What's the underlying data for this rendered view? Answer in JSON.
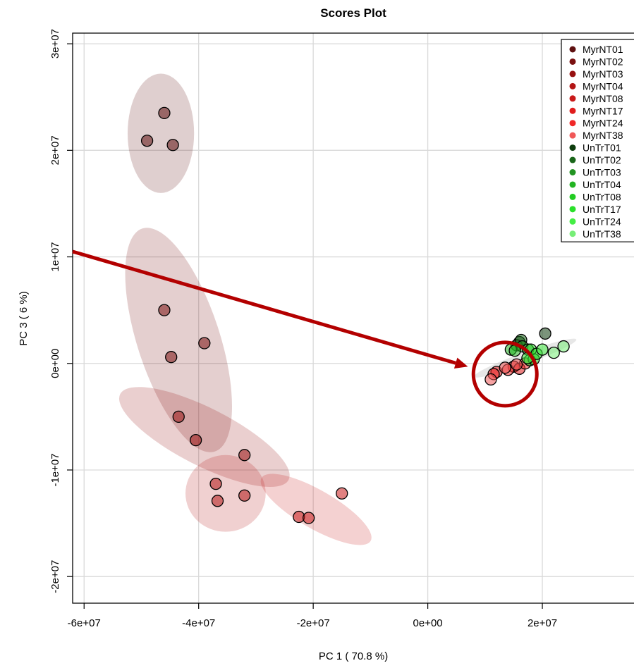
{
  "chart_data": {
    "type": "scatter",
    "title": "Scores Plot",
    "xlabel": "PC 1 ( 70.8 %)",
    "ylabel": "PC 3 ( 6 %)",
    "xlim": [
      -62000000,
      36000000
    ],
    "ylim": [
      -22500000,
      31000000
    ],
    "x_ticks": [
      {
        "value": -60000000,
        "label": "-6e+07"
      },
      {
        "value": -40000000,
        "label": "-4e+07"
      },
      {
        "value": -20000000,
        "label": "-2e+07"
      },
      {
        "value": 0,
        "label": "0e+00"
      },
      {
        "value": 20000000,
        "label": "2e+07"
      }
    ],
    "y_ticks": [
      {
        "value": -20000000,
        "label": "-2e+07"
      },
      {
        "value": -10000000,
        "label": "-1e+07"
      },
      {
        "value": 0,
        "label": "0e+00"
      },
      {
        "value": 10000000,
        "label": "1e+07"
      },
      {
        "value": 20000000,
        "label": "2e+07"
      },
      {
        "value": 30000000,
        "label": "3e+07"
      }
    ],
    "grid": true,
    "legend_position": "top-right",
    "series": [
      {
        "name": "MyrNT01",
        "color": "#5e1010",
        "points": [
          [
            -46000000,
            23500000
          ],
          [
            -49000000,
            20900000
          ],
          [
            -44500000,
            20500000
          ]
        ],
        "ellipse": {
          "cx": -46600000,
          "cy": 21600000,
          "rx": 5800000,
          "ry": 5600000,
          "angle": 0
        }
      },
      {
        "name": "MyrNT02",
        "color": "#7a1010",
        "points": [
          [
            -46000000,
            5000000
          ],
          [
            -39000000,
            1900000
          ],
          [
            -44800000,
            600000
          ]
        ],
        "ellipse": {
          "cx": -43500000,
          "cy": 2200000,
          "rx": 7200000,
          "ry": 11000000,
          "angle": 18
        }
      },
      {
        "name": "MyrNT03",
        "color": "#971010",
        "points": [
          [
            -43500000,
            -5000000
          ],
          [
            -40500000,
            -7200000
          ],
          [
            -32000000,
            -8600000
          ]
        ],
        "ellipse": {
          "cx": -39000000,
          "cy": -6900000,
          "rx": 16500000,
          "ry": 2700000,
          "angle": -27
        }
      },
      {
        "name": "MyrNT04",
        "color": "#b31515",
        "points": [
          [
            -37000000,
            -11300000
          ],
          [
            -36700000,
            -12900000
          ],
          [
            -32000000,
            -12400000
          ]
        ],
        "ellipse": {
          "cx": -35300000,
          "cy": -12200000,
          "rx": 7000000,
          "ry": 3600000,
          "angle": 0
        }
      },
      {
        "name": "MyrNT08",
        "color": "#c91a1a",
        "points": [
          [
            -22500000,
            -14400000
          ],
          [
            -20800000,
            -14500000
          ],
          [
            -15000000,
            -12200000
          ]
        ],
        "ellipse": {
          "cx": -19500000,
          "cy": -13700000,
          "rx": 11000000,
          "ry": 1800000,
          "angle": -30
        }
      },
      {
        "name": "MyrNT17",
        "color": "#e01c1c",
        "points": [
          [
            12000000,
            -800000
          ],
          [
            15000000,
            -300000
          ],
          [
            16000000,
            -500000
          ]
        ]
      },
      {
        "name": "MyrNT24",
        "color": "#f02828",
        "points": [
          [
            11500000,
            -1000000
          ],
          [
            14000000,
            -600000
          ],
          [
            17000000,
            0
          ]
        ]
      },
      {
        "name": "MyrNT38",
        "color": "#f05858",
        "points": [
          [
            11000000,
            -1500000
          ],
          [
            13500000,
            -400000
          ],
          [
            15500000,
            -100000
          ]
        ]
      },
      {
        "name": "UnTrT01",
        "color": "#0e3d0e",
        "points": [
          [
            16000000,
            2000000
          ],
          [
            20500000,
            2800000
          ]
        ]
      },
      {
        "name": "UnTrT02",
        "color": "#1a661a",
        "points": [
          [
            15500000,
            1700000
          ],
          [
            16300000,
            2200000
          ]
        ]
      },
      {
        "name": "UnTrT03",
        "color": "#229422",
        "points": [
          [
            16500000,
            1600000
          ],
          [
            17500000,
            1300000
          ]
        ]
      },
      {
        "name": "UnTrT04",
        "color": "#22b422",
        "points": [
          [
            14500000,
            1300000
          ],
          [
            15200000,
            1200000
          ]
        ]
      },
      {
        "name": "UnTrT08",
        "color": "#22cc22",
        "points": [
          [
            17800000,
            300000
          ],
          [
            18500000,
            400000
          ]
        ]
      },
      {
        "name": "UnTrT17",
        "color": "#2ae02a",
        "points": [
          [
            18000000,
            1300000
          ],
          [
            19000000,
            900000
          ]
        ]
      },
      {
        "name": "UnTrT24",
        "color": "#44ee44",
        "points": [
          [
            20000000,
            1300000
          ],
          [
            17400000,
            500000
          ]
        ]
      },
      {
        "name": "UnTrT38",
        "color": "#77ee77",
        "points": [
          [
            22000000,
            1000000
          ],
          [
            23700000,
            1600000
          ]
        ]
      }
    ],
    "annotation": {
      "type": "arrow-with-circle",
      "color": "#b30000",
      "arrow_from": [
        -62000000,
        10500000
      ],
      "arrow_to": [
        7000000,
        -300000
      ],
      "circle_center": [
        13500000,
        -1000000
      ]
    }
  }
}
